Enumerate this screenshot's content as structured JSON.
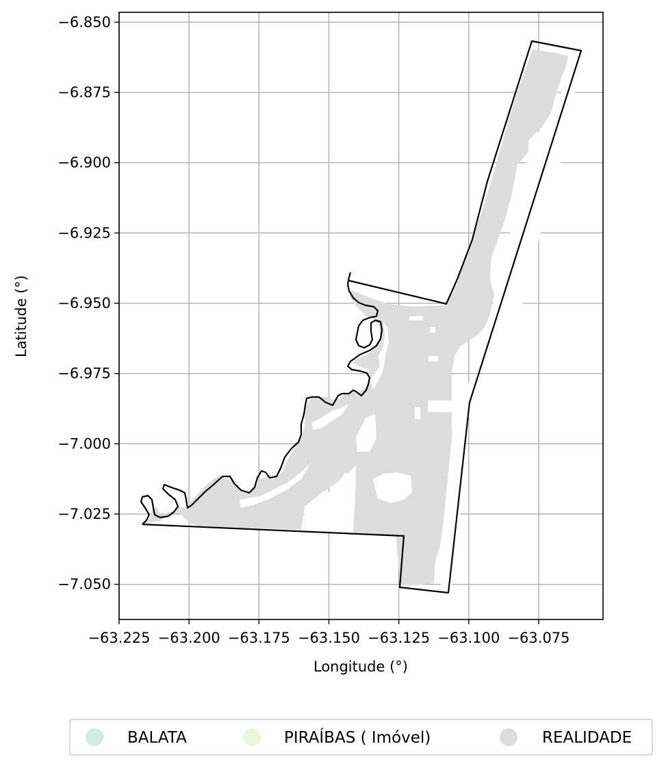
{
  "chart_data": {
    "type": "map",
    "title": "",
    "xlabel": "Longitude (°)",
    "ylabel": "Latitude (°)",
    "xlim": [
      -63.225,
      -63.052
    ],
    "ylim": [
      -7.0625,
      -6.8465
    ],
    "grid": true,
    "x_ticks": [
      {
        "value": -63.225,
        "label": "−63.225"
      },
      {
        "value": -63.2,
        "label": "−63.200"
      },
      {
        "value": -63.175,
        "label": "−63.175"
      },
      {
        "value": -63.15,
        "label": "−63.150"
      },
      {
        "value": -63.125,
        "label": "−63.125"
      },
      {
        "value": -63.1,
        "label": "−63.100"
      },
      {
        "value": -63.075,
        "label": "−63.075"
      }
    ],
    "y_ticks": [
      {
        "value": -6.85,
        "label": "−6.850"
      },
      {
        "value": -6.875,
        "label": "−6.875"
      },
      {
        "value": -6.9,
        "label": "−6.900"
      },
      {
        "value": -6.925,
        "label": "−6.925"
      },
      {
        "value": -6.95,
        "label": "−6.950"
      },
      {
        "value": -6.975,
        "label": "−6.975"
      },
      {
        "value": -7.0,
        "label": "−7.000"
      },
      {
        "value": -7.025,
        "label": "−7.025"
      },
      {
        "value": -7.05,
        "label": "−7.050"
      }
    ],
    "legend": {
      "placement": "bottom-center",
      "entries": [
        {
          "label": "BALATA",
          "color": "#d3ece0"
        },
        {
          "label": "PIRAÍBAS ( Imóvel)",
          "color": "#ebf7d9"
        },
        {
          "label": "REALIDADE",
          "color": "#dddddd"
        }
      ]
    },
    "colors": {
      "boundary": "#000000",
      "fill_realidade": "#dddddd",
      "grid": "#b0b0b0"
    }
  }
}
